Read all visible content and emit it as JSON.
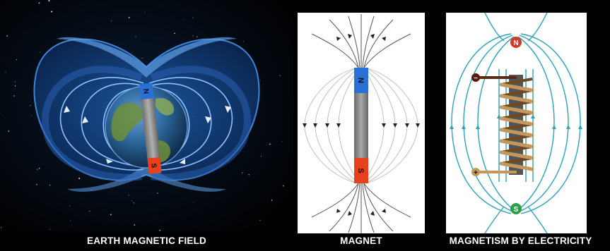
{
  "captions": {
    "earth": "EARTH MAGNETIC FIELD",
    "magnet": "MAGNET",
    "electro": "MAGNETISM BY ELECTRICITY"
  },
  "poles": {
    "north": "N",
    "south": "S",
    "minus": "−",
    "plus": "+"
  },
  "colors": {
    "north_pole": "#2a6fd6",
    "south_pole": "#e8401c",
    "magnet_body": "#8a8a8a",
    "field_lines_electro": "#2aa3b8",
    "coil": "#b8874a",
    "earth_field": "#2e74c8",
    "space": "#000000"
  }
}
